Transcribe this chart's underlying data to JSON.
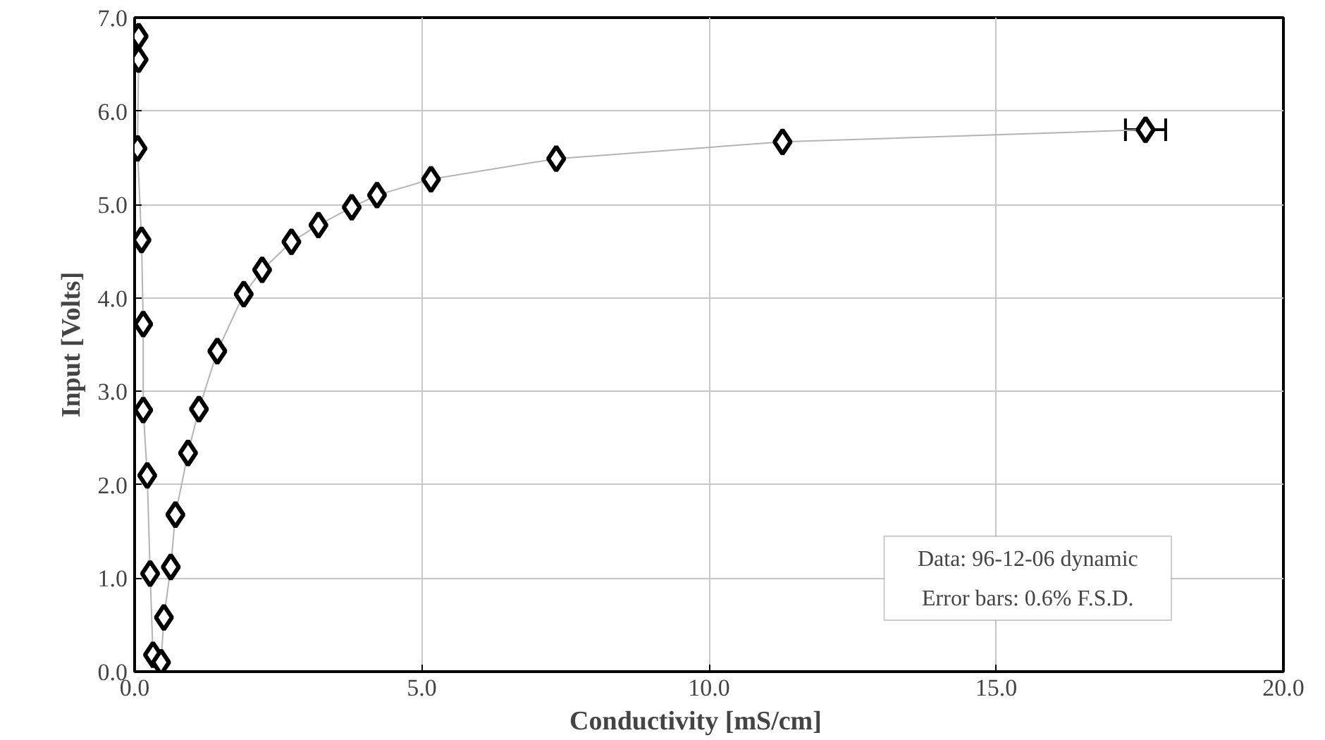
{
  "chart_data": {
    "type": "scatter",
    "xlabel": "Conductivity     [mS/cm]",
    "ylabel": "Input [Volts]",
    "x": [
      0.07,
      0.07,
      0.05,
      0.12,
      0.15,
      0.15,
      0.22,
      0.27,
      0.32,
      0.46,
      0.51,
      0.63,
      0.71,
      0.93,
      1.12,
      1.44,
      1.9,
      2.22,
      2.73,
      3.2,
      3.78,
      4.22,
      5.16,
      7.34,
      11.28,
      17.6
    ],
    "series": [
      {
        "type": "line",
        "color": "#b4b4b4",
        "marker": "none",
        "values": [
          6.8,
          6.55,
          5.6,
          4.62,
          3.72,
          2.8,
          2.1,
          1.05,
          0.18,
          0.1,
          0.58,
          1.12,
          1.68,
          2.34,
          2.81,
          3.43,
          4.04,
          4.3,
          4.6,
          4.78,
          4.97,
          5.1,
          5.27,
          5.49,
          5.67,
          5.8
        ]
      },
      {
        "color": "#000000",
        "marker": "diamond",
        "values": [
          6.8,
          6.55,
          5.6,
          4.62,
          3.72,
          2.8,
          2.1,
          1.05,
          0.18,
          0.1,
          0.58,
          1.12,
          1.68,
          2.34,
          2.81,
          3.43,
          4.04,
          4.3,
          4.6,
          4.78,
          4.97,
          5.1,
          5.27,
          5.49,
          5.67,
          5.8
        ],
        "xerrors": [
          null,
          null,
          null,
          null,
          null,
          null,
          null,
          null,
          null,
          null,
          null,
          null,
          null,
          null,
          null,
          null,
          null,
          null,
          null,
          null,
          null,
          null,
          null,
          null,
          null,
          0.35
        ]
      }
    ],
    "xlim": [
      0,
      20
    ],
    "xticks": [
      {
        "value": 0,
        "label": "0.0"
      },
      {
        "value": 5,
        "label": "5.0"
      },
      {
        "value": 10,
        "label": "10.0"
      },
      {
        "value": 15,
        "label": "15.0"
      },
      {
        "value": 20,
        "label": "20.0"
      }
    ],
    "ylim": [
      0,
      7
    ],
    "yticks": [
      {
        "value": 0,
        "label": "0.0"
      },
      {
        "value": 1,
        "label": "1.0"
      },
      {
        "value": 2,
        "label": "2.0"
      },
      {
        "value": 3,
        "label": "3.0"
      },
      {
        "value": 4,
        "label": "4.0"
      },
      {
        "value": 5,
        "label": "5.0"
      },
      {
        "value": 6,
        "label": "6.0"
      },
      {
        "value": 7,
        "label": "7.0"
      }
    ],
    "grid": true,
    "annotations": [
      "Data: 96-12-06 dynamic",
      "Error bars: 0.6% F.S.D."
    ]
  }
}
